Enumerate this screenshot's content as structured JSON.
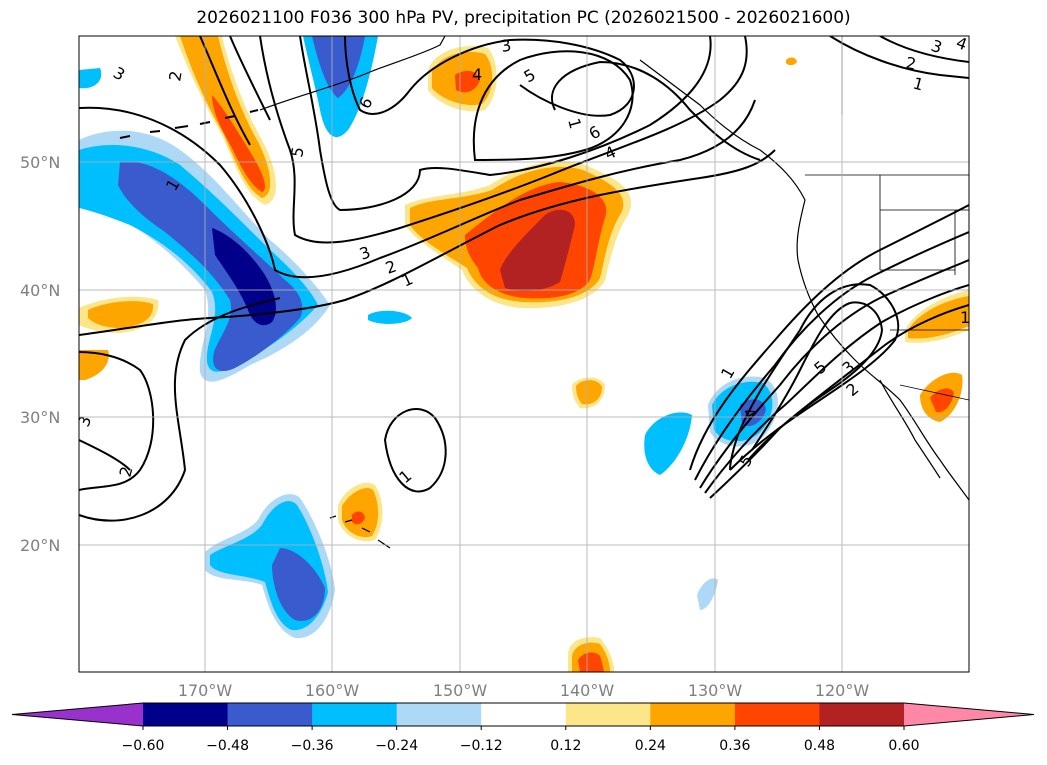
{
  "title": "2026021100 F036 300 hPa PV, precipitation PC (2026021500 - 2026021600)",
  "lat_labels": [
    "50°N",
    "40°N",
    "30°N",
    "20°N"
  ],
  "lon_labels": [
    "170°W",
    "160°W",
    "150°W",
    "140°W",
    "130°W",
    "120°W"
  ],
  "colorbar": {
    "tick_labels": [
      "−0.60",
      "−0.48",
      "−0.36",
      "−0.24",
      "−0.12",
      "0.12",
      "0.24",
      "0.36",
      "0.48",
      "0.60"
    ],
    "colors": [
      "#9932cc",
      "#00008b",
      "#3a5bcd",
      "#00bfff",
      "#add8f6",
      "#ffffff",
      "#fde68a",
      "#ffa500",
      "#ff4500",
      "#b22222",
      "#ff88a8"
    ]
  },
  "contour_labels": [
    "1",
    "2",
    "3",
    "4",
    "5",
    "6"
  ]
}
